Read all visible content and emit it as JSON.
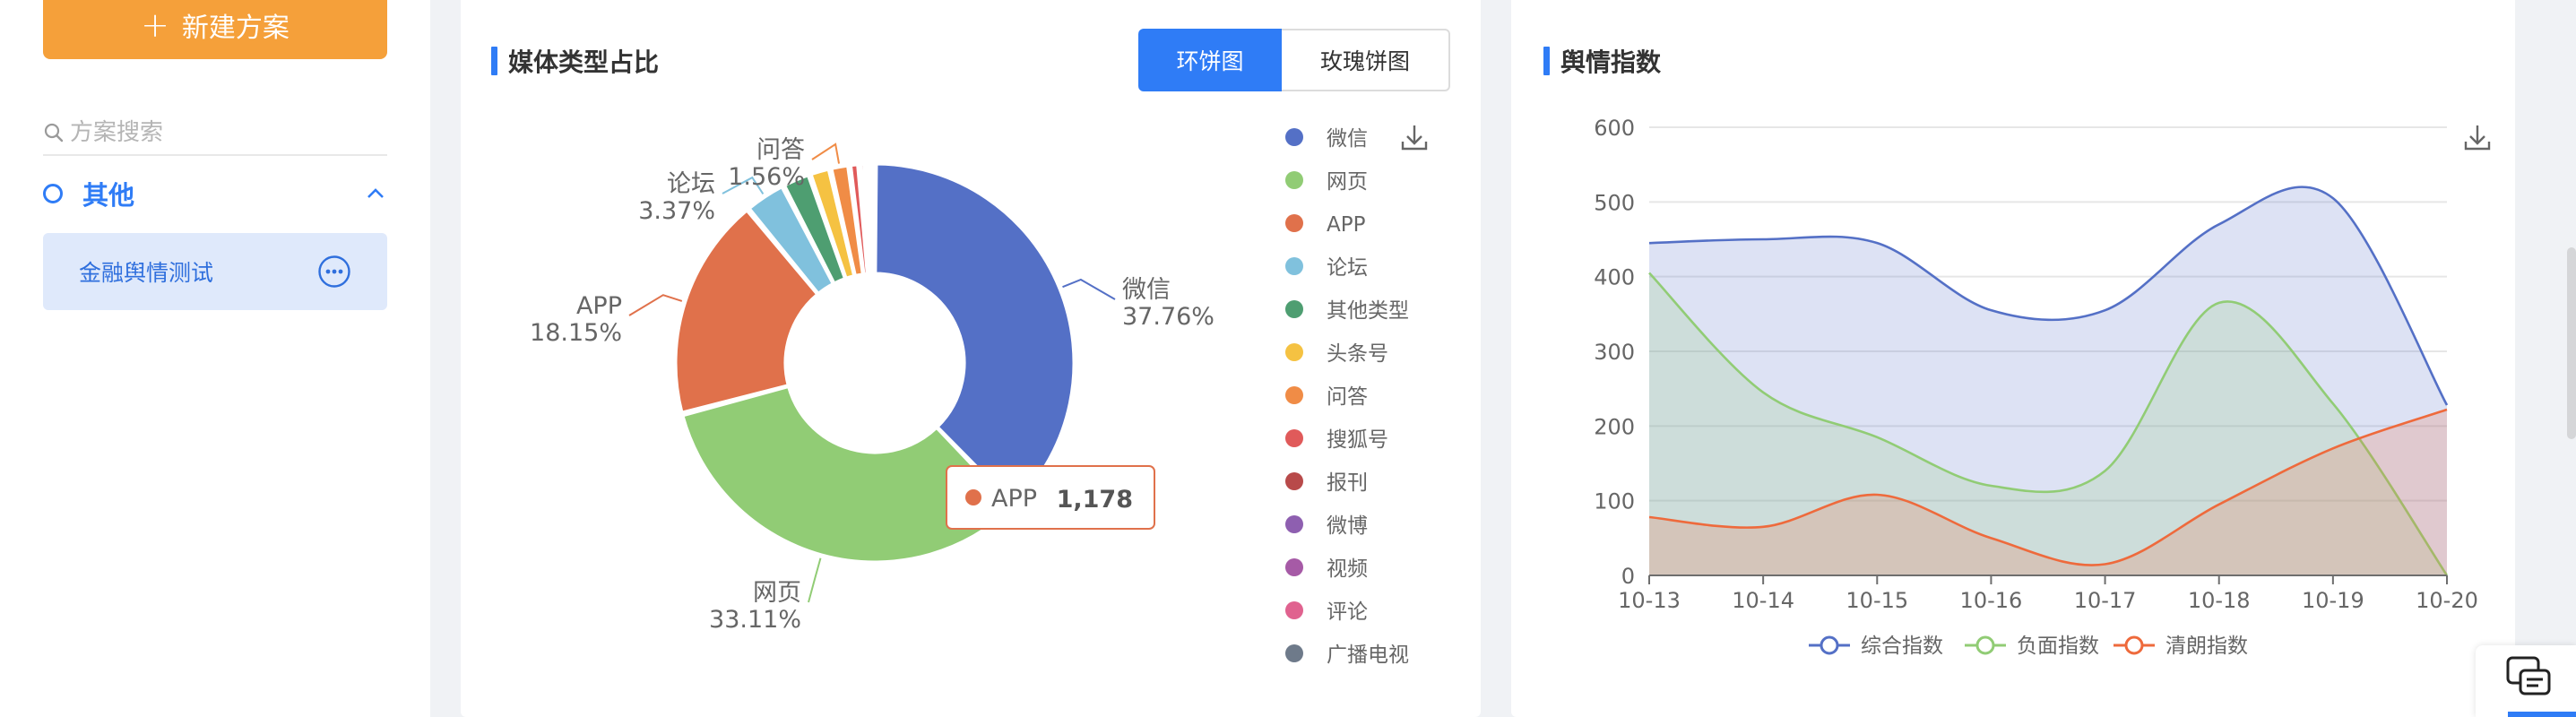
{
  "sidebar": {
    "new_plan_label": "新建方案",
    "search_placeholder": "方案搜索",
    "group_title": "其他",
    "plan_items": [
      {
        "label": "金融舆情测试"
      }
    ]
  },
  "media_card": {
    "title": "媒体类型占比",
    "toggle": {
      "active": "环饼图",
      "inactive": "玫瑰饼图"
    },
    "tooltip": {
      "label": "APP",
      "value": "1,178"
    }
  },
  "sentiment_card": {
    "title": "舆情指数"
  },
  "chart_data": [
    {
      "type": "pie",
      "style": "donut",
      "slices": [
        {
          "name": "微信",
          "percent": 37.76,
          "label_text": "37.76%",
          "color": "#5470c6"
        },
        {
          "name": "网页",
          "percent": 33.11,
          "label_text": "33.11%",
          "color": "#91cc75"
        },
        {
          "name": "APP",
          "percent": 18.15,
          "label_text": "18.15%",
          "value": 1178,
          "color": "#e0714b"
        },
        {
          "name": "论坛",
          "percent": 3.37,
          "label_text": "3.37%",
          "color": "#80c1dd"
        },
        {
          "name": "其他类型",
          "percent": 2.3,
          "color": "#4e9e71"
        },
        {
          "name": "头条号",
          "percent": 1.7,
          "color": "#f5c242"
        },
        {
          "name": "问答",
          "percent": 1.56,
          "label_text": "1.56%",
          "color": "#f08c46"
        },
        {
          "name": "搜狐号",
          "percent": 0.8,
          "color": "#e05a5a"
        },
        {
          "name": "报刊",
          "percent": 0.5,
          "color": "#b84a4a"
        },
        {
          "name": "微博",
          "percent": 0.25,
          "color": "#8e5fb0"
        },
        {
          "name": "视频",
          "percent": 0.2,
          "color": "#a65aa6"
        },
        {
          "name": "评论",
          "percent": 0.15,
          "color": "#e0628f"
        },
        {
          "name": "广播电视",
          "percent": 0.15,
          "color": "#6e7a8a"
        }
      ],
      "legend": [
        "微信",
        "网页",
        "APP",
        "论坛",
        "其他类型",
        "头条号",
        "问答",
        "搜狐号",
        "报刊",
        "微博",
        "视频",
        "评论",
        "广播电视"
      ],
      "legend_position": "right"
    },
    {
      "type": "area",
      "x": [
        "10-13",
        "10-14",
        "10-15",
        "10-16",
        "10-17",
        "10-18",
        "10-19",
        "10-20"
      ],
      "series": [
        {
          "name": "综合指数",
          "values": [
            445,
            450,
            445,
            355,
            355,
            470,
            505,
            228
          ],
          "color": "#5470c6"
        },
        {
          "name": "负面指数",
          "values": [
            405,
            245,
            185,
            120,
            140,
            365,
            230,
            0
          ],
          "color": "#91cc75"
        },
        {
          "name": "清朗指数",
          "values": [
            78,
            65,
            108,
            50,
            15,
            95,
            170,
            222
          ],
          "color": "#ee6a3c"
        }
      ],
      "ylim": [
        0,
        600
      ],
      "yticks": [
        0,
        100,
        200,
        300,
        400,
        500,
        600
      ],
      "grid": true,
      "legend_position": "bottom"
    }
  ]
}
